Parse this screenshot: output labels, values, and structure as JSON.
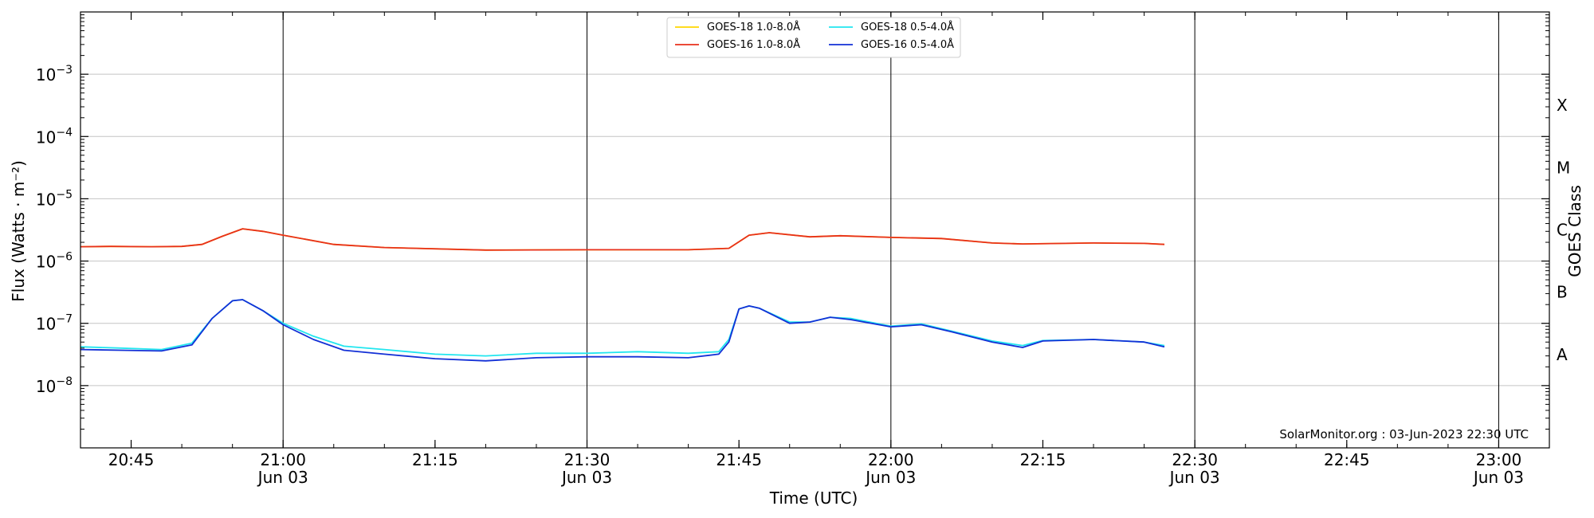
{
  "chart_data": {
    "type": "line",
    "title": "",
    "xlabel": "Time (UTC)",
    "ylabel": "Flux (Watts · m⁻²)",
    "y2label": "GOES Class",
    "yscale": "log",
    "ylim": [
      1e-09,
      0.01
    ],
    "xlim": [
      "20:40",
      "23:05"
    ],
    "grid": "horizontal",
    "legend_position": "top-center",
    "y_ticks": [
      {
        "value": 1e-08,
        "mant": "10",
        "exp": "−8"
      },
      {
        "value": 1e-07,
        "mant": "10",
        "exp": "−7"
      },
      {
        "value": 1e-06,
        "mant": "10",
        "exp": "−6"
      },
      {
        "value": 1e-05,
        "mant": "10",
        "exp": "−5"
      },
      {
        "value": 0.0001,
        "mant": "10",
        "exp": "−4"
      },
      {
        "value": 0.001,
        "mant": "10",
        "exp": "−3"
      }
    ],
    "x_ticks": [
      {
        "time": "20:45",
        "label": "20:45",
        "sublabel": ""
      },
      {
        "time": "21:00",
        "label": "21:00",
        "sublabel": "Jun 03"
      },
      {
        "time": "21:15",
        "label": "21:15",
        "sublabel": ""
      },
      {
        "time": "21:30",
        "label": "21:30",
        "sublabel": "Jun 03"
      },
      {
        "time": "21:45",
        "label": "21:45",
        "sublabel": ""
      },
      {
        "time": "22:00",
        "label": "22:00",
        "sublabel": "Jun 03"
      },
      {
        "time": "22:15",
        "label": "22:15",
        "sublabel": ""
      },
      {
        "time": "22:30",
        "label": "22:30",
        "sublabel": "Jun 03"
      },
      {
        "time": "22:45",
        "label": "22:45",
        "sublabel": ""
      },
      {
        "time": "23:00",
        "label": "23:00",
        "sublabel": "Jun 03"
      }
    ],
    "vertical_lines": [
      "21:00",
      "21:30",
      "22:00",
      "22:30",
      "23:00"
    ],
    "classes": [
      {
        "label": "A",
        "value": 3.16e-08
      },
      {
        "label": "B",
        "value": 3.16e-07
      },
      {
        "label": "C",
        "value": 3.16e-06
      },
      {
        "label": "M",
        "value": 3.16e-05
      },
      {
        "label": "X",
        "value": 0.000316
      }
    ],
    "series": [
      {
        "name": "GOES-18 1.0-8.0Å",
        "color": "#ffd700",
        "times": [
          "20:40",
          "20:43",
          "20:47",
          "20:50",
          "20:52",
          "20:54",
          "20:56",
          "20:58",
          "21:00",
          "21:05",
          "21:10",
          "21:20",
          "21:30",
          "21:40",
          "21:44",
          "21:46",
          "21:48",
          "21:52",
          "21:55",
          "22:00",
          "22:05",
          "22:10",
          "22:13",
          "22:20",
          "22:25",
          "22:27"
        ],
        "values": [
          1.7e-06,
          1.72e-06,
          1.7e-06,
          1.72e-06,
          1.85e-06,
          2.5e-06,
          3.3e-06,
          3e-06,
          2.6e-06,
          1.85e-06,
          1.65e-06,
          1.5e-06,
          1.52e-06,
          1.52e-06,
          1.6e-06,
          2.6e-06,
          2.85e-06,
          2.45e-06,
          2.55e-06,
          2.4e-06,
          2.3e-06,
          1.95e-06,
          1.88e-06,
          1.95e-06,
          1.92e-06,
          1.85e-06
        ]
      },
      {
        "name": "GOES-16 1.0-8.0Å",
        "color": "#e8301c",
        "times": [
          "20:40",
          "20:43",
          "20:47",
          "20:50",
          "20:52",
          "20:54",
          "20:56",
          "20:58",
          "21:00",
          "21:05",
          "21:10",
          "21:20",
          "21:30",
          "21:40",
          "21:44",
          "21:46",
          "21:48",
          "21:52",
          "21:55",
          "22:00",
          "22:05",
          "22:10",
          "22:13",
          "22:20",
          "22:25",
          "22:27"
        ],
        "values": [
          1.7e-06,
          1.72e-06,
          1.7e-06,
          1.72e-06,
          1.85e-06,
          2.5e-06,
          3.3e-06,
          3e-06,
          2.6e-06,
          1.85e-06,
          1.65e-06,
          1.5e-06,
          1.52e-06,
          1.52e-06,
          1.6e-06,
          2.6e-06,
          2.85e-06,
          2.45e-06,
          2.55e-06,
          2.4e-06,
          2.3e-06,
          1.95e-06,
          1.88e-06,
          1.95e-06,
          1.92e-06,
          1.85e-06
        ]
      },
      {
        "name": "GOES-18 0.5-4.0Å",
        "color": "#22e6ef",
        "times": [
          "20:40",
          "20:44",
          "20:48",
          "20:51",
          "20:53",
          "20:55",
          "20:56",
          "20:58",
          "21:00",
          "21:03",
          "21:06",
          "21:10",
          "21:15",
          "21:20",
          "21:25",
          "21:30",
          "21:35",
          "21:40",
          "21:43",
          "21:44",
          "21:45",
          "21:46",
          "21:47",
          "21:50",
          "21:52",
          "21:54",
          "21:56",
          "22:00",
          "22:03",
          "22:06",
          "22:10",
          "22:13",
          "22:15",
          "22:20",
          "22:25",
          "22:27"
        ],
        "values": [
          4.2e-08,
          4e-08,
          3.8e-08,
          4.8e-08,
          1.2e-07,
          2.3e-07,
          2.4e-07,
          1.6e-07,
          1e-07,
          6.2e-08,
          4.3e-08,
          3.8e-08,
          3.2e-08,
          3e-08,
          3.3e-08,
          3.3e-08,
          3.5e-08,
          3.3e-08,
          3.5e-08,
          5.5e-08,
          1.7e-07,
          1.9e-07,
          1.75e-07,
          1.05e-07,
          1.05e-07,
          1.25e-07,
          1.2e-07,
          9e-08,
          9.8e-08,
          7.5e-08,
          5.2e-08,
          4.4e-08,
          5.3e-08,
          5.5e-08,
          5e-08,
          4.4e-08
        ]
      },
      {
        "name": "GOES-16 0.5-4.0Å",
        "color": "#1330d6",
        "times": [
          "20:40",
          "20:44",
          "20:48",
          "20:51",
          "20:53",
          "20:55",
          "20:56",
          "20:58",
          "21:00",
          "21:03",
          "21:06",
          "21:10",
          "21:15",
          "21:20",
          "21:25",
          "21:30",
          "21:35",
          "21:40",
          "21:43",
          "21:44",
          "21:45",
          "21:46",
          "21:47",
          "21:50",
          "21:52",
          "21:54",
          "21:56",
          "22:00",
          "22:03",
          "22:06",
          "22:10",
          "22:13",
          "22:15",
          "22:20",
          "22:25",
          "22:27"
        ],
        "values": [
          3.8e-08,
          3.7e-08,
          3.6e-08,
          4.5e-08,
          1.2e-07,
          2.3e-07,
          2.4e-07,
          1.6e-07,
          9.5e-08,
          5.5e-08,
          3.7e-08,
          3.2e-08,
          2.7e-08,
          2.5e-08,
          2.8e-08,
          2.9e-08,
          2.9e-08,
          2.8e-08,
          3.2e-08,
          5e-08,
          1.7e-07,
          1.9e-07,
          1.75e-07,
          1e-07,
          1.05e-07,
          1.25e-07,
          1.15e-07,
          8.8e-08,
          9.5e-08,
          7.3e-08,
          5e-08,
          4.1e-08,
          5.2e-08,
          5.5e-08,
          5e-08,
          4.2e-08
        ]
      }
    ],
    "annotation": "SolarMonitor.org : 03-Jun-2023 22:30 UTC"
  }
}
